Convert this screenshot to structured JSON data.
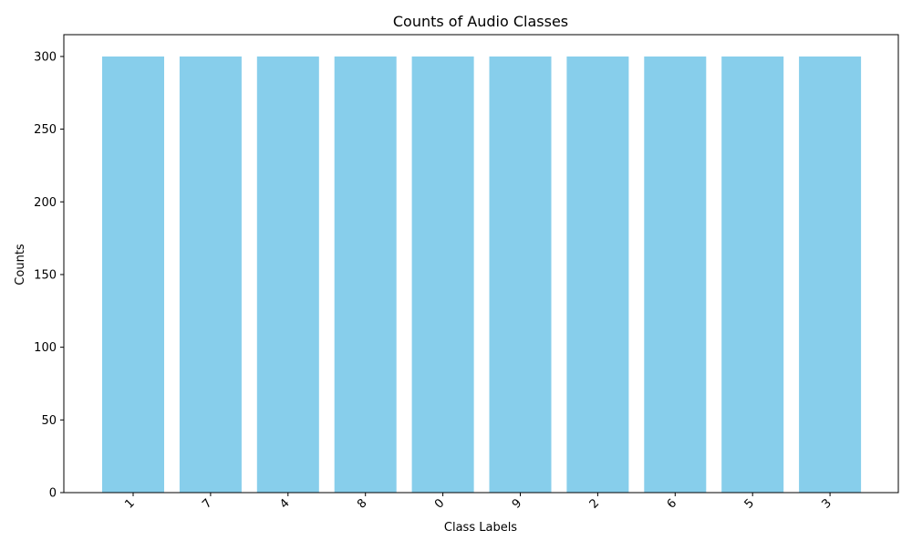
{
  "chart_data": {
    "type": "bar",
    "title": "Counts of Audio Classes",
    "xlabel": "Class Labels",
    "ylabel": "Counts",
    "categories": [
      "1",
      "7",
      "4",
      "8",
      "0",
      "9",
      "2",
      "6",
      "5",
      "3"
    ],
    "values": [
      300,
      300,
      300,
      300,
      300,
      300,
      300,
      300,
      300,
      300
    ],
    "ylim": [
      0,
      315
    ],
    "yticks": [
      0,
      50,
      100,
      150,
      200,
      250,
      300
    ],
    "bar_color": "#87ceeb",
    "grid": false,
    "xtick_rotation_deg": 45
  }
}
